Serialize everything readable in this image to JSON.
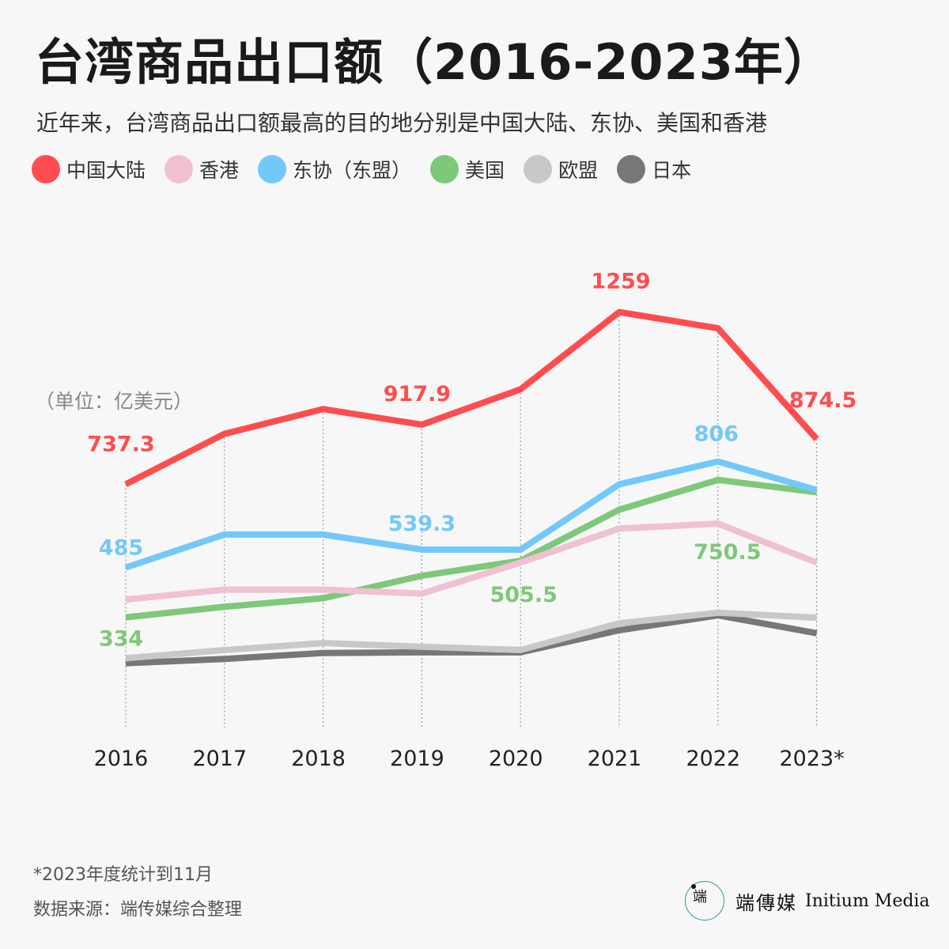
{
  "title": "台湾商品出口额（2016-2023年）",
  "subtitle": "近年来，台湾商品出口额最高的目的地分别是中国大陆、东协、美国和香港",
  "unit_label": "（单位：亿美元）",
  "footnote": "*2023年度统计到11月",
  "source": "数据来源：端传媒综合整理",
  "brand": {
    "logo_glyph": "端",
    "name_cn": "端傳媒",
    "name_en": "Initium Media"
  },
  "chart_data": {
    "type": "line",
    "x": [
      "2016",
      "2017",
      "2018",
      "2019",
      "2020",
      "2021",
      "2022",
      "2023*"
    ],
    "ylim": [
      0,
      1400
    ],
    "grid": "vertical dotted lines at each year",
    "legend_position": "top-left",
    "series": [
      {
        "name": "中国大陆",
        "color": "#ff4d4f",
        "values": [
          737.3,
          890,
          965,
          917.9,
          1025,
          1259,
          1210,
          874.5
        ],
        "labels": [
          {
            "index": 0,
            "text": "737.3"
          },
          {
            "index": 3,
            "text": "917.9"
          },
          {
            "index": 5,
            "text": "1259"
          },
          {
            "index": 7,
            "text": "874.5"
          }
        ]
      },
      {
        "name": "香港",
        "color": "#f0c0d3",
        "values": [
          388,
          418,
          418,
          406,
          500,
          603,
          618,
          500
        ],
        "labels": []
      },
      {
        "name": "东协（东盟）",
        "color": "#73c8fb",
        "values": [
          485,
          585,
          585,
          539.3,
          539,
          737,
          806,
          720
        ],
        "labels": [
          {
            "index": 0,
            "text": "485"
          },
          {
            "index": 3,
            "text": "539.3"
          },
          {
            "index": 6,
            "text": "806"
          }
        ]
      },
      {
        "name": "美国",
        "color": "#7ec87a",
        "values": [
          334,
          366,
          392,
          460,
          505.5,
          660,
          750.5,
          713
        ],
        "labels": [
          {
            "index": 0,
            "text": "334"
          },
          {
            "index": 4,
            "text": "505.5"
          },
          {
            "index": 6,
            "text": "750.5"
          }
        ]
      },
      {
        "name": "欧盟",
        "color": "#c8c8c8",
        "values": [
          210,
          235,
          256,
          245,
          235,
          316,
          348,
          333
        ],
        "labels": []
      },
      {
        "name": "日本",
        "color": "#777777",
        "values": [
          195,
          208,
          226,
          228,
          228,
          295,
          340,
          286
        ],
        "labels": []
      }
    ]
  }
}
